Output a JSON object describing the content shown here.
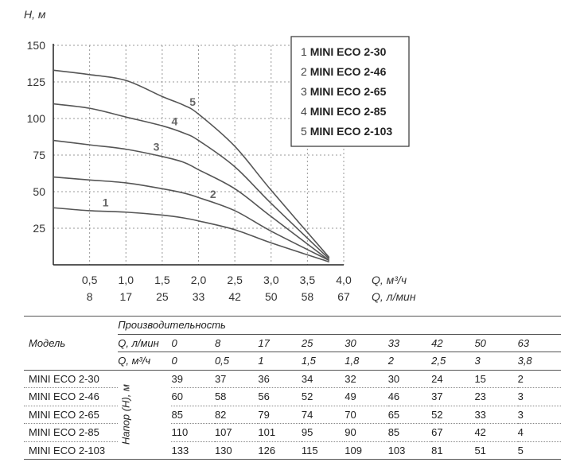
{
  "chart_data": {
    "type": "line",
    "ylabel": "H, м",
    "yticks": [
      150,
      125,
      100,
      75,
      50,
      25
    ],
    "ylim": [
      0,
      150
    ],
    "x_m3h_ticks": [
      "0,5",
      "1,0",
      "1,5",
      "2,0",
      "2,5",
      "3,0",
      "3,5",
      "4,0"
    ],
    "x_lmin_ticks": [
      "8",
      "17",
      "25",
      "33",
      "42",
      "50",
      "58",
      "67"
    ],
    "xlabel_m3h": "Q, м³/ч",
    "xlabel_lmin": "Q, л/мин",
    "xlim": [
      0,
      4.0
    ],
    "legend": [
      {
        "num": "1",
        "name": "MINI ECO 2-30"
      },
      {
        "num": "2",
        "name": "MINI ECO 2-46"
      },
      {
        "num": "3",
        "name": "MINI ECO 2-65"
      },
      {
        "num": "4",
        "name": "MINI ECO 2-85"
      },
      {
        "num": "5",
        "name": "MINI ECO 2-103"
      }
    ],
    "series": [
      {
        "label": "1",
        "x": [
          0,
          0.5,
          1,
          1.5,
          1.8,
          2,
          2.5,
          3,
          3.8
        ],
        "y": [
          39,
          37,
          36,
          34,
          32,
          30,
          24,
          15,
          2
        ]
      },
      {
        "label": "2",
        "x": [
          0,
          0.5,
          1,
          1.5,
          1.8,
          2,
          2.5,
          3,
          3.8
        ],
        "y": [
          60,
          58,
          56,
          52,
          49,
          46,
          37,
          23,
          3
        ]
      },
      {
        "label": "3",
        "x": [
          0,
          0.5,
          1,
          1.5,
          1.8,
          2,
          2.5,
          3,
          3.8
        ],
        "y": [
          85,
          82,
          79,
          74,
          70,
          65,
          52,
          33,
          3
        ]
      },
      {
        "label": "4",
        "x": [
          0,
          0.5,
          1,
          1.5,
          1.8,
          2,
          2.5,
          3,
          3.8
        ],
        "y": [
          110,
          107,
          101,
          95,
          90,
          85,
          67,
          42,
          4
        ]
      },
      {
        "label": "5",
        "x": [
          0,
          0.5,
          1,
          1.5,
          1.8,
          2,
          2.5,
          3,
          3.8
        ],
        "y": [
          133,
          130,
          126,
          115,
          109,
          103,
          81,
          51,
          5
        ]
      }
    ],
    "curve_label_x": [
      0.72,
      2.2,
      1.42,
      1.67,
      1.92
    ]
  },
  "table": {
    "model_header": "Модель",
    "perf_header": "Производительность",
    "q_lmin_label": "Q, л/мин",
    "q_m3h_label": "Q, м³/ч",
    "head_label": "Напор (H), м",
    "q_lmin": [
      "0",
      "8",
      "17",
      "25",
      "30",
      "33",
      "42",
      "50",
      "63"
    ],
    "q_m3h": [
      "0",
      "0,5",
      "1",
      "1,5",
      "1,8",
      "2",
      "2,5",
      "3",
      "3,8"
    ],
    "rows": [
      {
        "model": "MINI ECO 2-30",
        "values": [
          "39",
          "37",
          "36",
          "34",
          "32",
          "30",
          "24",
          "15",
          "2"
        ]
      },
      {
        "model": "MINI ECO 2-46",
        "values": [
          "60",
          "58",
          "56",
          "52",
          "49",
          "46",
          "37",
          "23",
          "3"
        ]
      },
      {
        "model": "MINI ECO 2-65",
        "values": [
          "85",
          "82",
          "79",
          "74",
          "70",
          "65",
          "52",
          "33",
          "3"
        ]
      },
      {
        "model": "MINI ECO 2-85",
        "values": [
          "110",
          "107",
          "101",
          "95",
          "90",
          "85",
          "67",
          "42",
          "4"
        ]
      },
      {
        "model": "MINI ECO 2-103",
        "values": [
          "133",
          "130",
          "126",
          "115",
          "109",
          "103",
          "81",
          "51",
          "5"
        ]
      }
    ]
  }
}
